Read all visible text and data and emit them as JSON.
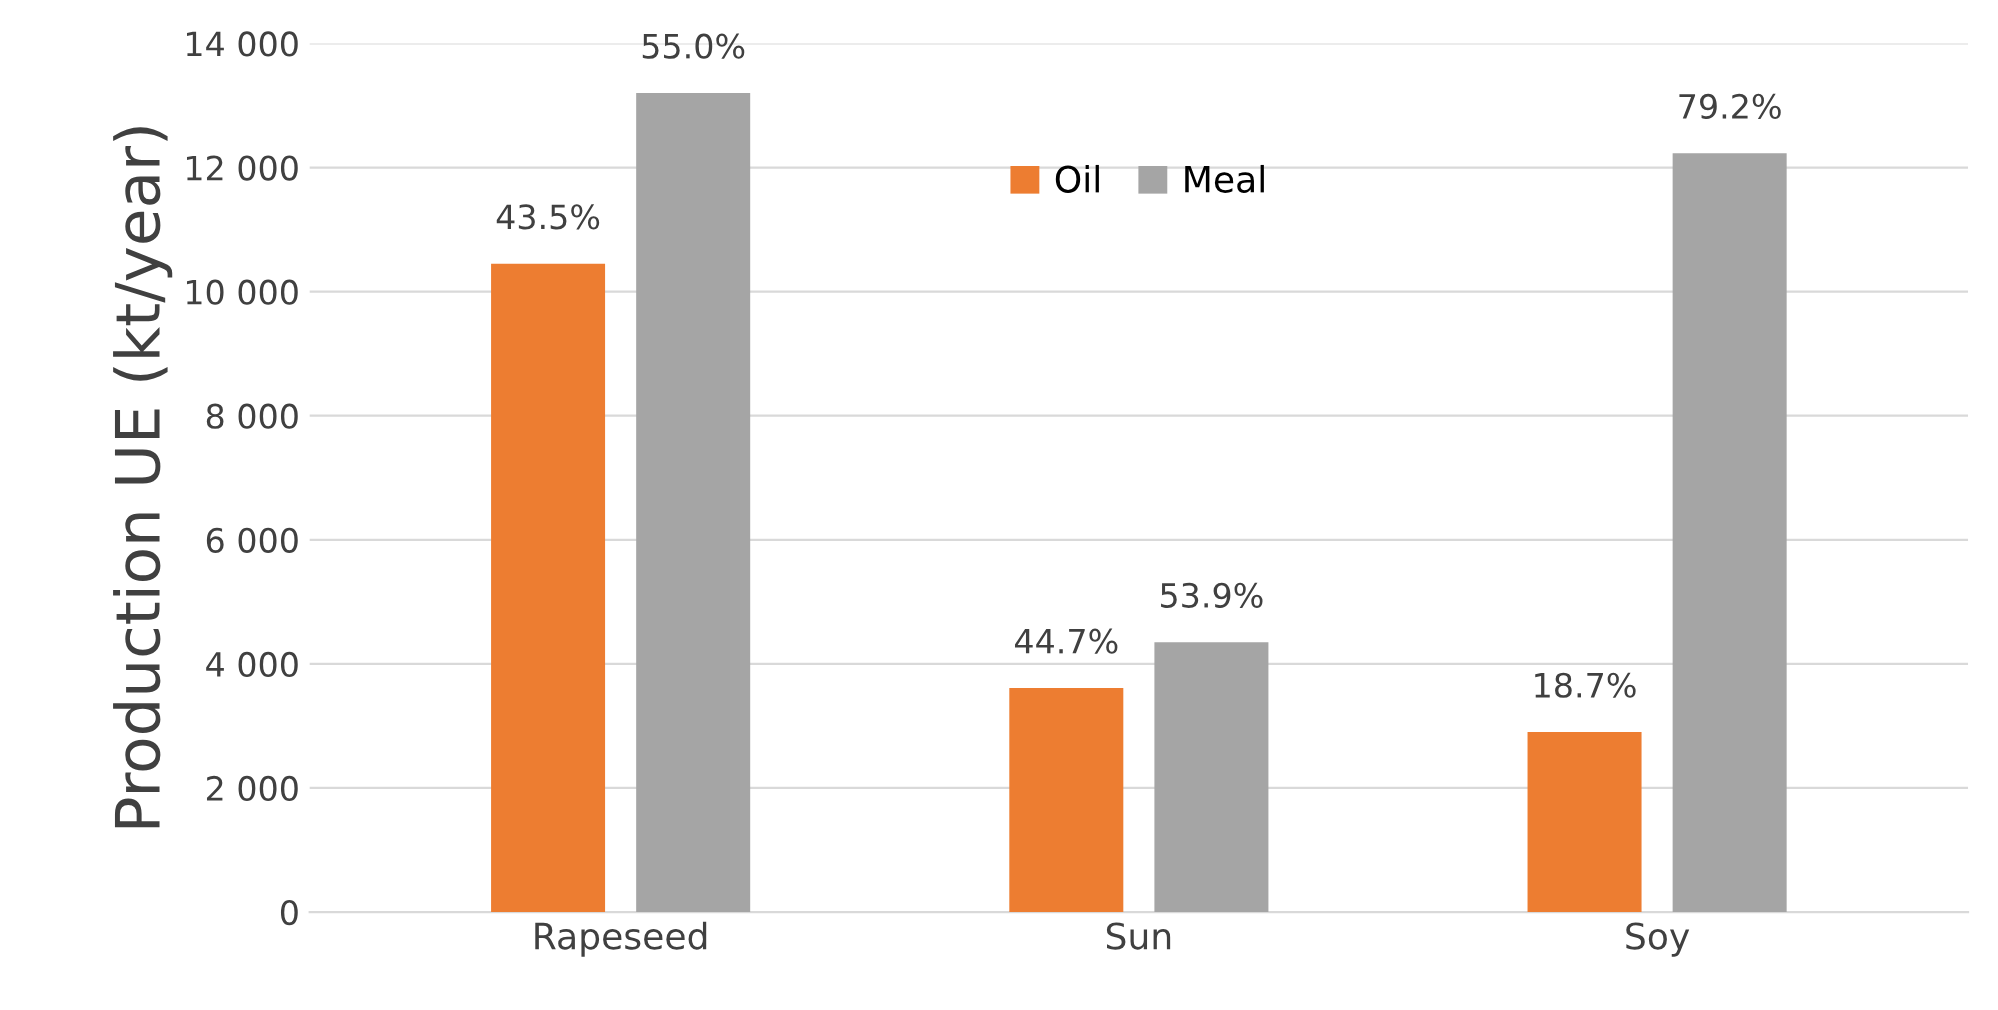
{
  "chart_data": {
    "type": "bar",
    "ylabel": "Production UE (kt/year)",
    "categories": [
      "Rapeseed",
      "Sun",
      "Soy"
    ],
    "series": [
      {
        "name": "Oil",
        "color": "#ed7d31",
        "values": [
          10450,
          3610,
          2900
        ]
      },
      {
        "name": "Meal",
        "color": "#a5a5a5",
        "values": [
          13200,
          4350,
          12230
        ]
      }
    ],
    "annotations": [
      "43.5%",
      "44.7%",
      "18.7%",
      "55.0%",
      "53.9%",
      "79.2%"
    ],
    "ylim": [
      0,
      14000
    ],
    "yticks": [
      {
        "value": 0,
        "label": "0"
      },
      {
        "value": 2000,
        "label": "2 000"
      },
      {
        "value": 4000,
        "label": "4 000"
      },
      {
        "value": 6000,
        "label": "6 000"
      },
      {
        "value": 8000,
        "label": "8 000"
      },
      {
        "value": 10000,
        "label": "10 000"
      },
      {
        "value": 12000,
        "label": "12 000"
      },
      {
        "value": 14000,
        "label": "14 000"
      }
    ],
    "grid": "y",
    "legend": "top"
  }
}
